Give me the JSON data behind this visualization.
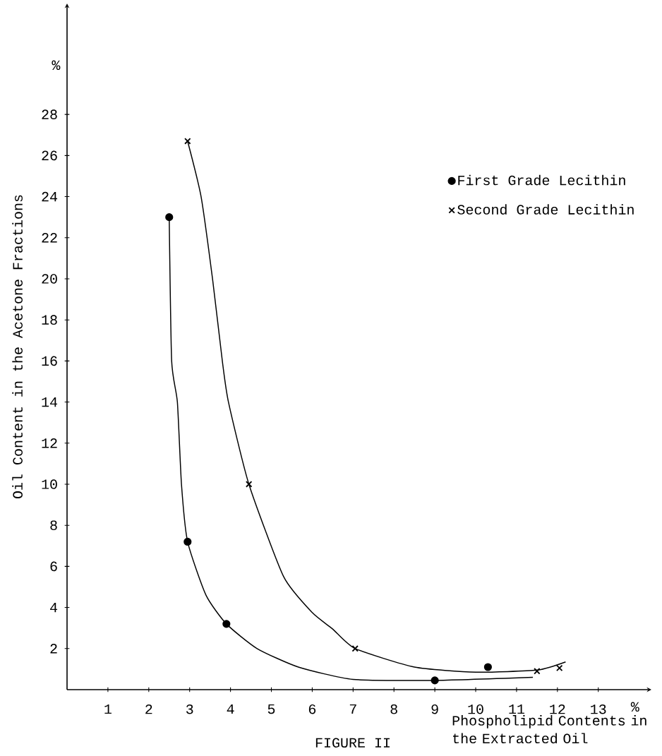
{
  "chart_data": {
    "type": "scatter",
    "xlabel": "Phospholipid Contents in the Extracted Oil",
    "ylabel": "Oil Content in the Acetone Fractions",
    "annotations": [
      "FIGURE II"
    ],
    "xlim": [
      0,
      14.3
    ],
    "ylim": [
      0,
      33.4
    ],
    "xticks": [
      1,
      2,
      3,
      4,
      5,
      6,
      7,
      8,
      9,
      10,
      11,
      12,
      13,
      {
        "value": 13.9,
        "label": "%"
      }
    ],
    "yticks": [
      2,
      4,
      6,
      8,
      10,
      12,
      14,
      16,
      18,
      20,
      22,
      24,
      26,
      28,
      {
        "value": 30.4,
        "label": "%"
      }
    ],
    "legend": "right",
    "series": [
      {
        "name": "First Grade Lecithin",
        "type": "scatter",
        "marker": "circle",
        "color": "#000000",
        "x": [
          2.5,
          2.95,
          3.9,
          9.0,
          10.3
        ],
        "values": [
          23,
          7.2,
          3.2,
          0.45,
          1.1
        ]
      },
      {
        "name": "Second Grade Lecithin",
        "type": "scatter",
        "marker": "cross",
        "color": "#000000",
        "x": [
          2.95,
          4.45,
          7.05,
          11.5,
          12.05
        ],
        "values": [
          26.7,
          10,
          2.0,
          0.9,
          1.05
        ]
      },
      {
        "type": "line",
        "marker": "none",
        "color": "#000000",
        "x": [
          2.5,
          2.56,
          2.7,
          2.8,
          2.95,
          3.4,
          3.9,
          4.65,
          5.66,
          7,
          9,
          11.4
        ],
        "values": [
          23,
          16,
          14,
          10,
          7.2,
          4.6,
          3.2,
          2.0,
          1.1,
          0.5,
          0.45,
          0.6
        ]
      },
      {
        "type": "line",
        "marker": "none",
        "color": "#000000",
        "x": [
          2.95,
          3.28,
          3.56,
          3.8,
          3.95,
          4.45,
          5.3,
          6,
          6.5,
          7.05,
          8.5,
          10,
          11.5,
          12.2
        ],
        "values": [
          26.7,
          24,
          20,
          16,
          14,
          10,
          5.5,
          3.75,
          2.95,
          2.0,
          1.1,
          0.85,
          0.95,
          1.35
        ]
      }
    ]
  }
}
